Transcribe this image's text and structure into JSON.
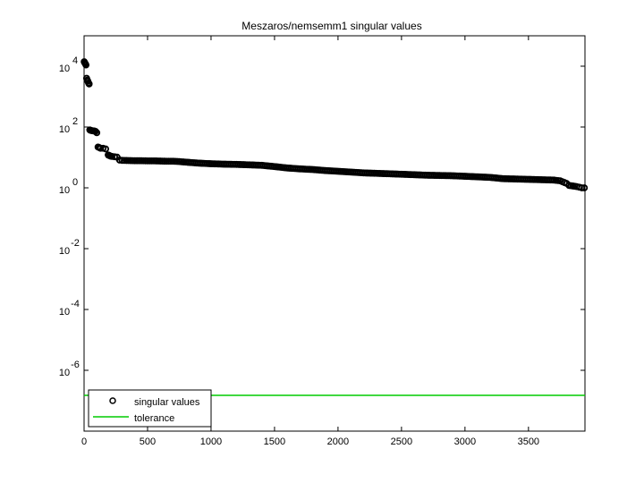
{
  "chart_data": {
    "type": "scatter",
    "title": "Meszaros/nemsemm1 singular values",
    "xlabel": "",
    "ylabel": "",
    "xlim": [
      0,
      3945
    ],
    "ylim_log10": [
      -8,
      5
    ],
    "y_scale": "log",
    "x_ticks": [
      0,
      500,
      1000,
      1500,
      2000,
      2500,
      3000,
      3500
    ],
    "y_ticks_exponent": [
      -6,
      -4,
      -2,
      0,
      2,
      4
    ],
    "y_tick_base": "10",
    "grid": false,
    "legend_position": "bottom-left",
    "legend": {
      "singular_label": "singular values",
      "tolerance_label": "tolerance"
    },
    "colors": {
      "singular": "#000000",
      "tolerance": "#00cc00",
      "axes": "#000000"
    },
    "singular_values": {
      "x": [
        1,
        5,
        10,
        15,
        20,
        25,
        30,
        35,
        40,
        45,
        50,
        60,
        70,
        80,
        90,
        100,
        110,
        120,
        130,
        150,
        170,
        190,
        200,
        210,
        220,
        240,
        260,
        280,
        300,
        350,
        400,
        450,
        500,
        550,
        600,
        650,
        700,
        750,
        800,
        900,
        1000,
        1100,
        1200,
        1300,
        1400,
        1500,
        1600,
        1700,
        1800,
        1900,
        2000,
        2100,
        2200,
        2300,
        2400,
        2500,
        2600,
        2700,
        2800,
        2900,
        3000,
        3100,
        3200,
        3300,
        3400,
        3500,
        3600,
        3700,
        3750,
        3800,
        3820,
        3850,
        3880,
        3900,
        3920,
        3940
      ],
      "y": [
        14000,
        13000,
        12000,
        11000,
        4000,
        3500,
        3200,
        2800,
        2600,
        80,
        78,
        76,
        75,
        74,
        72,
        65,
        22,
        21,
        20,
        20,
        19,
        12,
        11.5,
        11,
        10.8,
        10.5,
        10.2,
        8.2,
        8.0,
        7.9,
        7.8,
        7.8,
        7.7,
        7.7,
        7.6,
        7.5,
        7.5,
        7.3,
        7.0,
        6.5,
        6.2,
        6.0,
        5.9,
        5.7,
        5.5,
        5.0,
        4.5,
        4.2,
        4.0,
        3.7,
        3.5,
        3.3,
        3.1,
        3.0,
        2.9,
        2.8,
        2.7,
        2.6,
        2.55,
        2.5,
        2.4,
        2.3,
        2.2,
        2.0,
        1.95,
        1.9,
        1.85,
        1.8,
        1.7,
        1.4,
        1.2,
        1.15,
        1.1,
        1.05,
        1.0,
        1.0
      ]
    },
    "tolerance": {
      "y": 1.5e-07
    }
  }
}
